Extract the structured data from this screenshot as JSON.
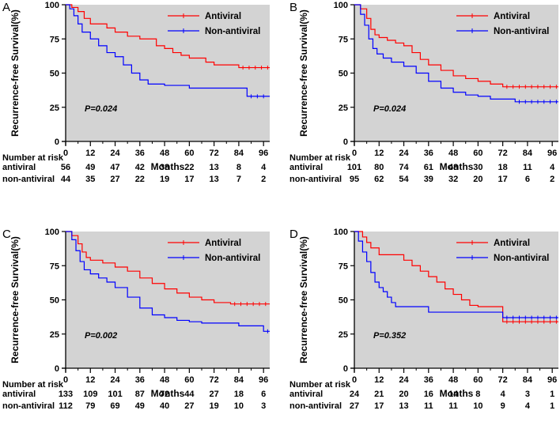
{
  "colors": {
    "antiviral": "#ff0000",
    "non_antiviral": "#0000ff",
    "plot_bg": "#d3d3d3"
  },
  "chart_data": [
    {
      "type": "line",
      "panel": "A",
      "ylabel": "Recurrence-free Survival(%)",
      "xlabel": "Months",
      "xlim": [
        0,
        99
      ],
      "ylim": [
        0,
        100
      ],
      "xticks": [
        0,
        12,
        24,
        36,
        48,
        60,
        72,
        84,
        96
      ],
      "yticks": [
        0,
        25,
        50,
        75,
        100
      ],
      "legend": [
        "Antiviral",
        "Non-antiviral"
      ],
      "pvalue": "P=0.024",
      "risk_title": "Number at risk",
      "risk_labels": [
        "antiviral",
        "non-antiviral"
      ],
      "series": [
        {
          "name": "Antiviral",
          "color": "#ff0000",
          "x": [
            0,
            3,
            6,
            9,
            12,
            20,
            24,
            30,
            36,
            44,
            48,
            52,
            56,
            60,
            68,
            72,
            84,
            99
          ],
          "y": [
            100,
            98,
            95,
            90,
            86,
            83,
            80,
            77,
            75,
            70,
            68,
            65,
            63,
            61,
            58,
            56,
            54,
            54
          ]
        },
        {
          "name": "Non-antiviral",
          "color": "#0000ff",
          "x": [
            0,
            2,
            4,
            6,
            8,
            12,
            16,
            20,
            24,
            28,
            32,
            36,
            40,
            48,
            56,
            60,
            72,
            84,
            88,
            99
          ],
          "y": [
            100,
            97,
            92,
            86,
            80,
            75,
            70,
            65,
            62,
            56,
            50,
            45,
            42,
            41,
            41,
            39,
            39,
            39,
            33,
            33
          ]
        }
      ],
      "risk": {
        "antiviral": [
          56,
          49,
          47,
          42,
          38,
          22,
          13,
          8,
          4
        ],
        "non_antiviral": [
          44,
          35,
          27,
          22,
          19,
          17,
          13,
          7,
          2
        ]
      }
    },
    {
      "type": "line",
      "panel": "B",
      "ylabel": "Recurrence-free Survival(%)",
      "xlabel": "Months",
      "xlim": [
        0,
        99
      ],
      "ylim": [
        0,
        100
      ],
      "xticks": [
        0,
        12,
        24,
        36,
        48,
        60,
        72,
        84,
        96
      ],
      "yticks": [
        0,
        25,
        50,
        75,
        100
      ],
      "legend": [
        "Antiviral",
        "Non-antiviral"
      ],
      "pvalue": "P=0.024",
      "risk_title": "Number at risk",
      "risk_labels": [
        "antiviral",
        "non-antiviral"
      ],
      "series": [
        {
          "name": "Antiviral",
          "color": "#ff0000",
          "x": [
            0,
            3,
            6,
            8,
            10,
            12,
            16,
            20,
            24,
            28,
            32,
            36,
            42,
            48,
            54,
            60,
            66,
            72,
            84,
            99
          ],
          "y": [
            100,
            97,
            90,
            82,
            78,
            76,
            74,
            72,
            70,
            65,
            60,
            56,
            52,
            48,
            46,
            44,
            42,
            40,
            40,
            40
          ]
        },
        {
          "name": "Non-antiviral",
          "color": "#0000ff",
          "x": [
            0,
            3,
            5,
            7,
            9,
            11,
            14,
            18,
            24,
            30,
            36,
            42,
            48,
            54,
            60,
            66,
            72,
            78,
            84,
            99
          ],
          "y": [
            100,
            93,
            85,
            75,
            68,
            64,
            61,
            58,
            55,
            50,
            44,
            39,
            36,
            34,
            33,
            31,
            31,
            29,
            29,
            29
          ]
        }
      ],
      "risk": {
        "antiviral": [
          101,
          80,
          74,
          61,
          48,
          30,
          18,
          11,
          4
        ],
        "non_antiviral": [
          95,
          62,
          54,
          39,
          32,
          20,
          17,
          6,
          2
        ]
      }
    },
    {
      "type": "line",
      "panel": "C",
      "ylabel": "Recurrence-free Survival(%)",
      "xlabel": "Months",
      "xlim": [
        0,
        99
      ],
      "ylim": [
        0,
        100
      ],
      "xticks": [
        0,
        12,
        24,
        36,
        48,
        60,
        72,
        84,
        96
      ],
      "yticks": [
        0,
        25,
        50,
        75,
        100
      ],
      "legend": [
        "Antiviral",
        "Non-antiviral"
      ],
      "pvalue": "P=0.002",
      "risk_title": "Number at risk",
      "risk_labels": [
        "antiviral",
        "non-antiviral"
      ],
      "series": [
        {
          "name": "Antiviral",
          "color": "#ff0000",
          "x": [
            0,
            3,
            6,
            8,
            10,
            12,
            18,
            24,
            30,
            36,
            42,
            48,
            54,
            60,
            66,
            72,
            80,
            84,
            99
          ],
          "y": [
            100,
            97,
            91,
            85,
            81,
            79,
            77,
            74,
            71,
            66,
            62,
            58,
            55,
            52,
            50,
            48,
            47,
            47,
            47
          ]
        },
        {
          "name": "Non-antiviral",
          "color": "#0000ff",
          "x": [
            0,
            3,
            5,
            7,
            9,
            12,
            16,
            20,
            24,
            30,
            36,
            42,
            48,
            54,
            60,
            66,
            72,
            78,
            84,
            96,
            99
          ],
          "y": [
            100,
            94,
            86,
            78,
            72,
            69,
            66,
            63,
            59,
            52,
            44,
            39,
            37,
            35,
            34,
            33,
            33,
            33,
            31,
            27,
            27
          ]
        }
      ],
      "risk": {
        "antiviral": [
          133,
          109,
          101,
          87,
          72,
          44,
          27,
          18,
          6
        ],
        "non_antiviral": [
          112,
          79,
          69,
          49,
          40,
          27,
          19,
          10,
          3
        ]
      }
    },
    {
      "type": "line",
      "panel": "D",
      "ylabel": "Recurrence-free Survival(%)",
      "xlabel": "Months",
      "xlim": [
        0,
        99
      ],
      "ylim": [
        0,
        100
      ],
      "xticks": [
        0,
        12,
        24,
        36,
        48,
        60,
        72,
        84,
        96
      ],
      "yticks": [
        0,
        25,
        50,
        75,
        100
      ],
      "legend": [
        "Antiviral",
        "Non-antiviral"
      ],
      "pvalue": "P=0.352",
      "risk_title": "Number at risk",
      "risk_labels": [
        "antiviral",
        "non-antiviral"
      ],
      "series": [
        {
          "name": "Antiviral",
          "color": "#ff0000",
          "x": [
            0,
            4,
            6,
            8,
            12,
            18,
            24,
            28,
            32,
            36,
            40,
            44,
            48,
            52,
            56,
            60,
            64,
            66,
            72,
            84,
            99
          ],
          "y": [
            100,
            96,
            92,
            88,
            83,
            83,
            79,
            75,
            71,
            67,
            63,
            58,
            54,
            50,
            46,
            45,
            45,
            45,
            34,
            34,
            34
          ]
        },
        {
          "name": "Non-antiviral",
          "color": "#0000ff",
          "x": [
            0,
            2,
            4,
            6,
            8,
            10,
            12,
            14,
            16,
            18,
            20,
            22,
            24,
            36,
            48,
            60,
            72,
            84,
            99
          ],
          "y": [
            100,
            93,
            85,
            78,
            70,
            63,
            59,
            56,
            52,
            48,
            45,
            45,
            45,
            41,
            41,
            41,
            37,
            37,
            37
          ]
        }
      ],
      "risk": {
        "antiviral": [
          24,
          21,
          20,
          16,
          14,
          8,
          4,
          3,
          1
        ],
        "non_antiviral": [
          27,
          17,
          13,
          11,
          11,
          10,
          9,
          4,
          1
        ]
      }
    }
  ]
}
